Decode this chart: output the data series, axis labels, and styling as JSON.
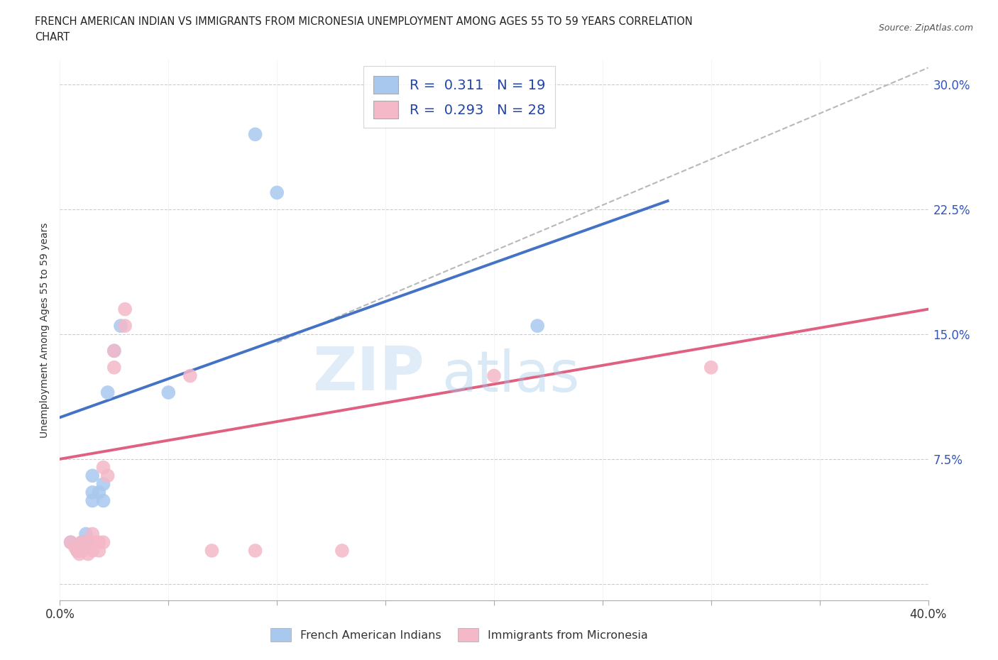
{
  "title_line1": "FRENCH AMERICAN INDIAN VS IMMIGRANTS FROM MICRONESIA UNEMPLOYMENT AMONG AGES 55 TO 59 YEARS CORRELATION",
  "title_line2": "CHART",
  "source_text": "Source: ZipAtlas.com",
  "ylabel": "Unemployment Among Ages 55 to 59 years",
  "xlim": [
    0,
    0.4
  ],
  "ylim": [
    -0.01,
    0.315
  ],
  "xticks": [
    0.0,
    0.05,
    0.1,
    0.15,
    0.2,
    0.25,
    0.3,
    0.35,
    0.4
  ],
  "yticks": [
    0.0,
    0.075,
    0.15,
    0.225,
    0.3
  ],
  "blue_scatter": [
    [
      0.005,
      0.025
    ],
    [
      0.008,
      0.02
    ],
    [
      0.01,
      0.02
    ],
    [
      0.01,
      0.025
    ],
    [
      0.012,
      0.03
    ],
    [
      0.012,
      0.025
    ],
    [
      0.015,
      0.065
    ],
    [
      0.015,
      0.055
    ],
    [
      0.015,
      0.05
    ],
    [
      0.018,
      0.055
    ],
    [
      0.02,
      0.05
    ],
    [
      0.02,
      0.06
    ],
    [
      0.022,
      0.115
    ],
    [
      0.025,
      0.14
    ],
    [
      0.028,
      0.155
    ],
    [
      0.05,
      0.115
    ],
    [
      0.09,
      0.27
    ],
    [
      0.1,
      0.235
    ],
    [
      0.22,
      0.155
    ]
  ],
  "pink_scatter": [
    [
      0.005,
      0.025
    ],
    [
      0.007,
      0.022
    ],
    [
      0.008,
      0.02
    ],
    [
      0.009,
      0.018
    ],
    [
      0.01,
      0.025
    ],
    [
      0.01,
      0.02
    ],
    [
      0.012,
      0.025
    ],
    [
      0.012,
      0.022
    ],
    [
      0.013,
      0.018
    ],
    [
      0.015,
      0.03
    ],
    [
      0.015,
      0.025
    ],
    [
      0.015,
      0.02
    ],
    [
      0.016,
      0.025
    ],
    [
      0.018,
      0.02
    ],
    [
      0.018,
      0.025
    ],
    [
      0.02,
      0.025
    ],
    [
      0.02,
      0.07
    ],
    [
      0.022,
      0.065
    ],
    [
      0.025,
      0.14
    ],
    [
      0.025,
      0.13
    ],
    [
      0.03,
      0.165
    ],
    [
      0.03,
      0.155
    ],
    [
      0.06,
      0.125
    ],
    [
      0.07,
      0.02
    ],
    [
      0.09,
      0.02
    ],
    [
      0.13,
      0.02
    ],
    [
      0.2,
      0.125
    ],
    [
      0.3,
      0.13
    ]
  ],
  "blue_line_x": [
    0.0,
    0.28
  ],
  "blue_line_y": [
    0.1,
    0.23
  ],
  "pink_line_x": [
    0.0,
    0.4
  ],
  "pink_line_y": [
    0.075,
    0.165
  ],
  "dashed_line_x": [
    0.1,
    0.4
  ],
  "dashed_line_y": [
    0.145,
    0.31
  ],
  "blue_color": "#a8c8ee",
  "pink_color": "#f4b8c8",
  "blue_line_color": "#4472c4",
  "pink_line_color": "#e06080",
  "dashed_line_color": "#b8b8b8",
  "legend_label1": "French American Indians",
  "legend_label2": "Immigrants from Micronesia",
  "watermark_zip": "ZIP",
  "watermark_atlas": "atlas",
  "background_color": "#ffffff",
  "grid_color": "#cccccc"
}
